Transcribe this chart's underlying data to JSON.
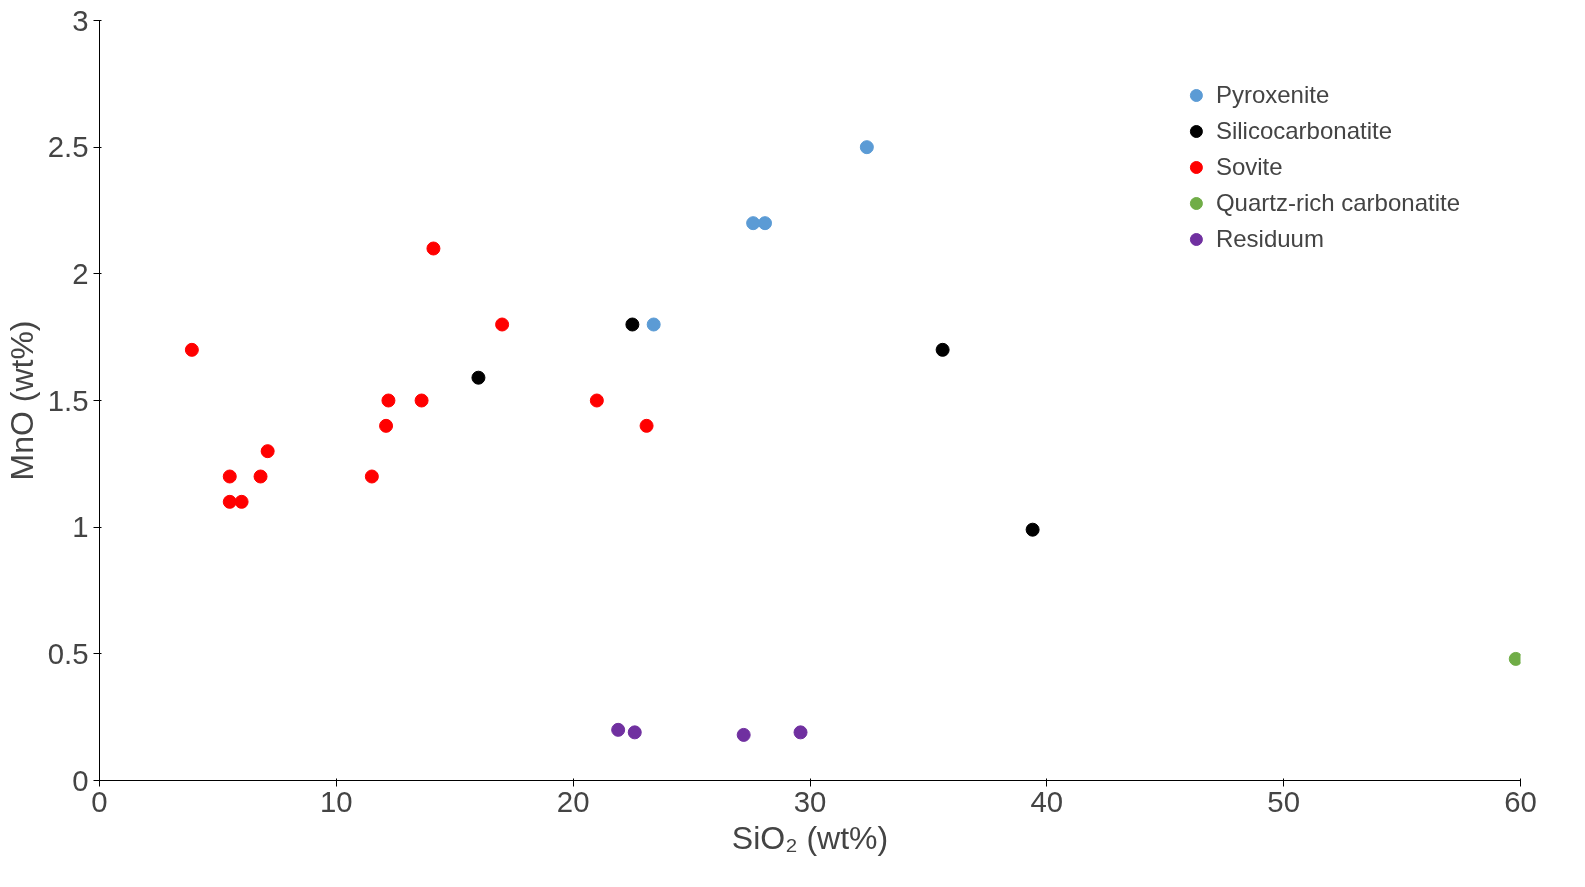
{
  "chart_data": {
    "type": "scatter",
    "xlabel": "SiO₂ (wt%)",
    "ylabel": "MnO (wt%)",
    "xlim": [
      0,
      60
    ],
    "ylim": [
      0,
      3
    ],
    "xticks": [
      0,
      10,
      20,
      30,
      40,
      50,
      60
    ],
    "yticks": [
      0,
      0.5,
      1,
      1.5,
      2,
      2.5,
      3
    ],
    "grid": false,
    "legend": "top right",
    "marker": "circle",
    "series": [
      {
        "name": "Pyroxenite",
        "color": "#5b9bd5",
        "x": [
          32.4,
          27.6,
          28.1,
          23.4
        ],
        "values": [
          2.5,
          2.2,
          2.2,
          1.8
        ]
      },
      {
        "name": "Silicocarbonatite",
        "color": "#000000",
        "x": [
          22.5,
          16.0,
          35.6,
          39.4
        ],
        "values": [
          1.8,
          1.59,
          1.7,
          0.99
        ]
      },
      {
        "name": "Sovite",
        "color": "#ff0000",
        "x": [
          3.9,
          14.1,
          17.0,
          12.2,
          13.6,
          12.1,
          7.1,
          5.5,
          6.8,
          11.5,
          5.5,
          6.0,
          21.0,
          23.1
        ],
        "values": [
          1.7,
          2.1,
          1.8,
          1.5,
          1.5,
          1.4,
          1.3,
          1.2,
          1.2,
          1.2,
          1.1,
          1.1,
          1.5,
          1.4
        ]
      },
      {
        "name": "Quartz-rich carbonatite",
        "color": "#70ad47",
        "x": [
          59.8
        ],
        "values": [
          0.48
        ]
      },
      {
        "name": "Residuum",
        "color": "#7030a0",
        "x": [
          21.9,
          22.6,
          27.2,
          29.6
        ],
        "values": [
          0.2,
          0.19,
          0.18,
          0.19
        ]
      }
    ]
  }
}
